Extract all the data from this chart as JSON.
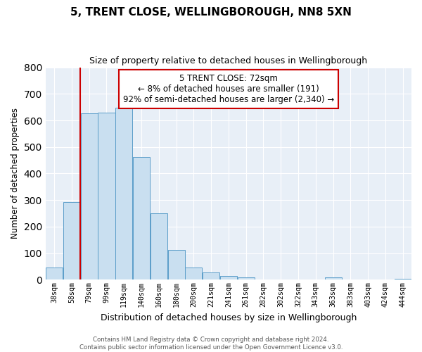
{
  "title": "5, TRENT CLOSE, WELLINGBOROUGH, NN8 5XN",
  "subtitle": "Size of property relative to detached houses in Wellingborough",
  "xlabel": "Distribution of detached houses by size in Wellingborough",
  "ylabel": "Number of detached properties",
  "bar_labels": [
    "38sqm",
    "58sqm",
    "79sqm",
    "99sqm",
    "119sqm",
    "140sqm",
    "160sqm",
    "180sqm",
    "200sqm",
    "221sqm",
    "241sqm",
    "261sqm",
    "282sqm",
    "302sqm",
    "322sqm",
    "343sqm",
    "363sqm",
    "383sqm",
    "403sqm",
    "424sqm",
    "444sqm"
  ],
  "bar_values": [
    47,
    293,
    627,
    630,
    648,
    462,
    250,
    112,
    47,
    28,
    15,
    10,
    1,
    1,
    1,
    1,
    8,
    1,
    1,
    1,
    5
  ],
  "bar_color": "#c9dff0",
  "bar_edge_color": "#5b9dc9",
  "vline_color": "#cc0000",
  "annotation_title": "5 TRENT CLOSE: 72sqm",
  "annotation_line1": "← 8% of detached houses are smaller (191)",
  "annotation_line2": "92% of semi-detached houses are larger (2,340) →",
  "annotation_box_color": "#ffffff",
  "annotation_box_edge": "#cc0000",
  "ylim": [
    0,
    800
  ],
  "yticks": [
    0,
    100,
    200,
    300,
    400,
    500,
    600,
    700,
    800
  ],
  "background_color": "#e8eff7",
  "grid_color": "#ffffff",
  "footer1": "Contains HM Land Registry data © Crown copyright and database right 2024.",
  "footer2": "Contains public sector information licensed under the Open Government Licence v3.0."
}
